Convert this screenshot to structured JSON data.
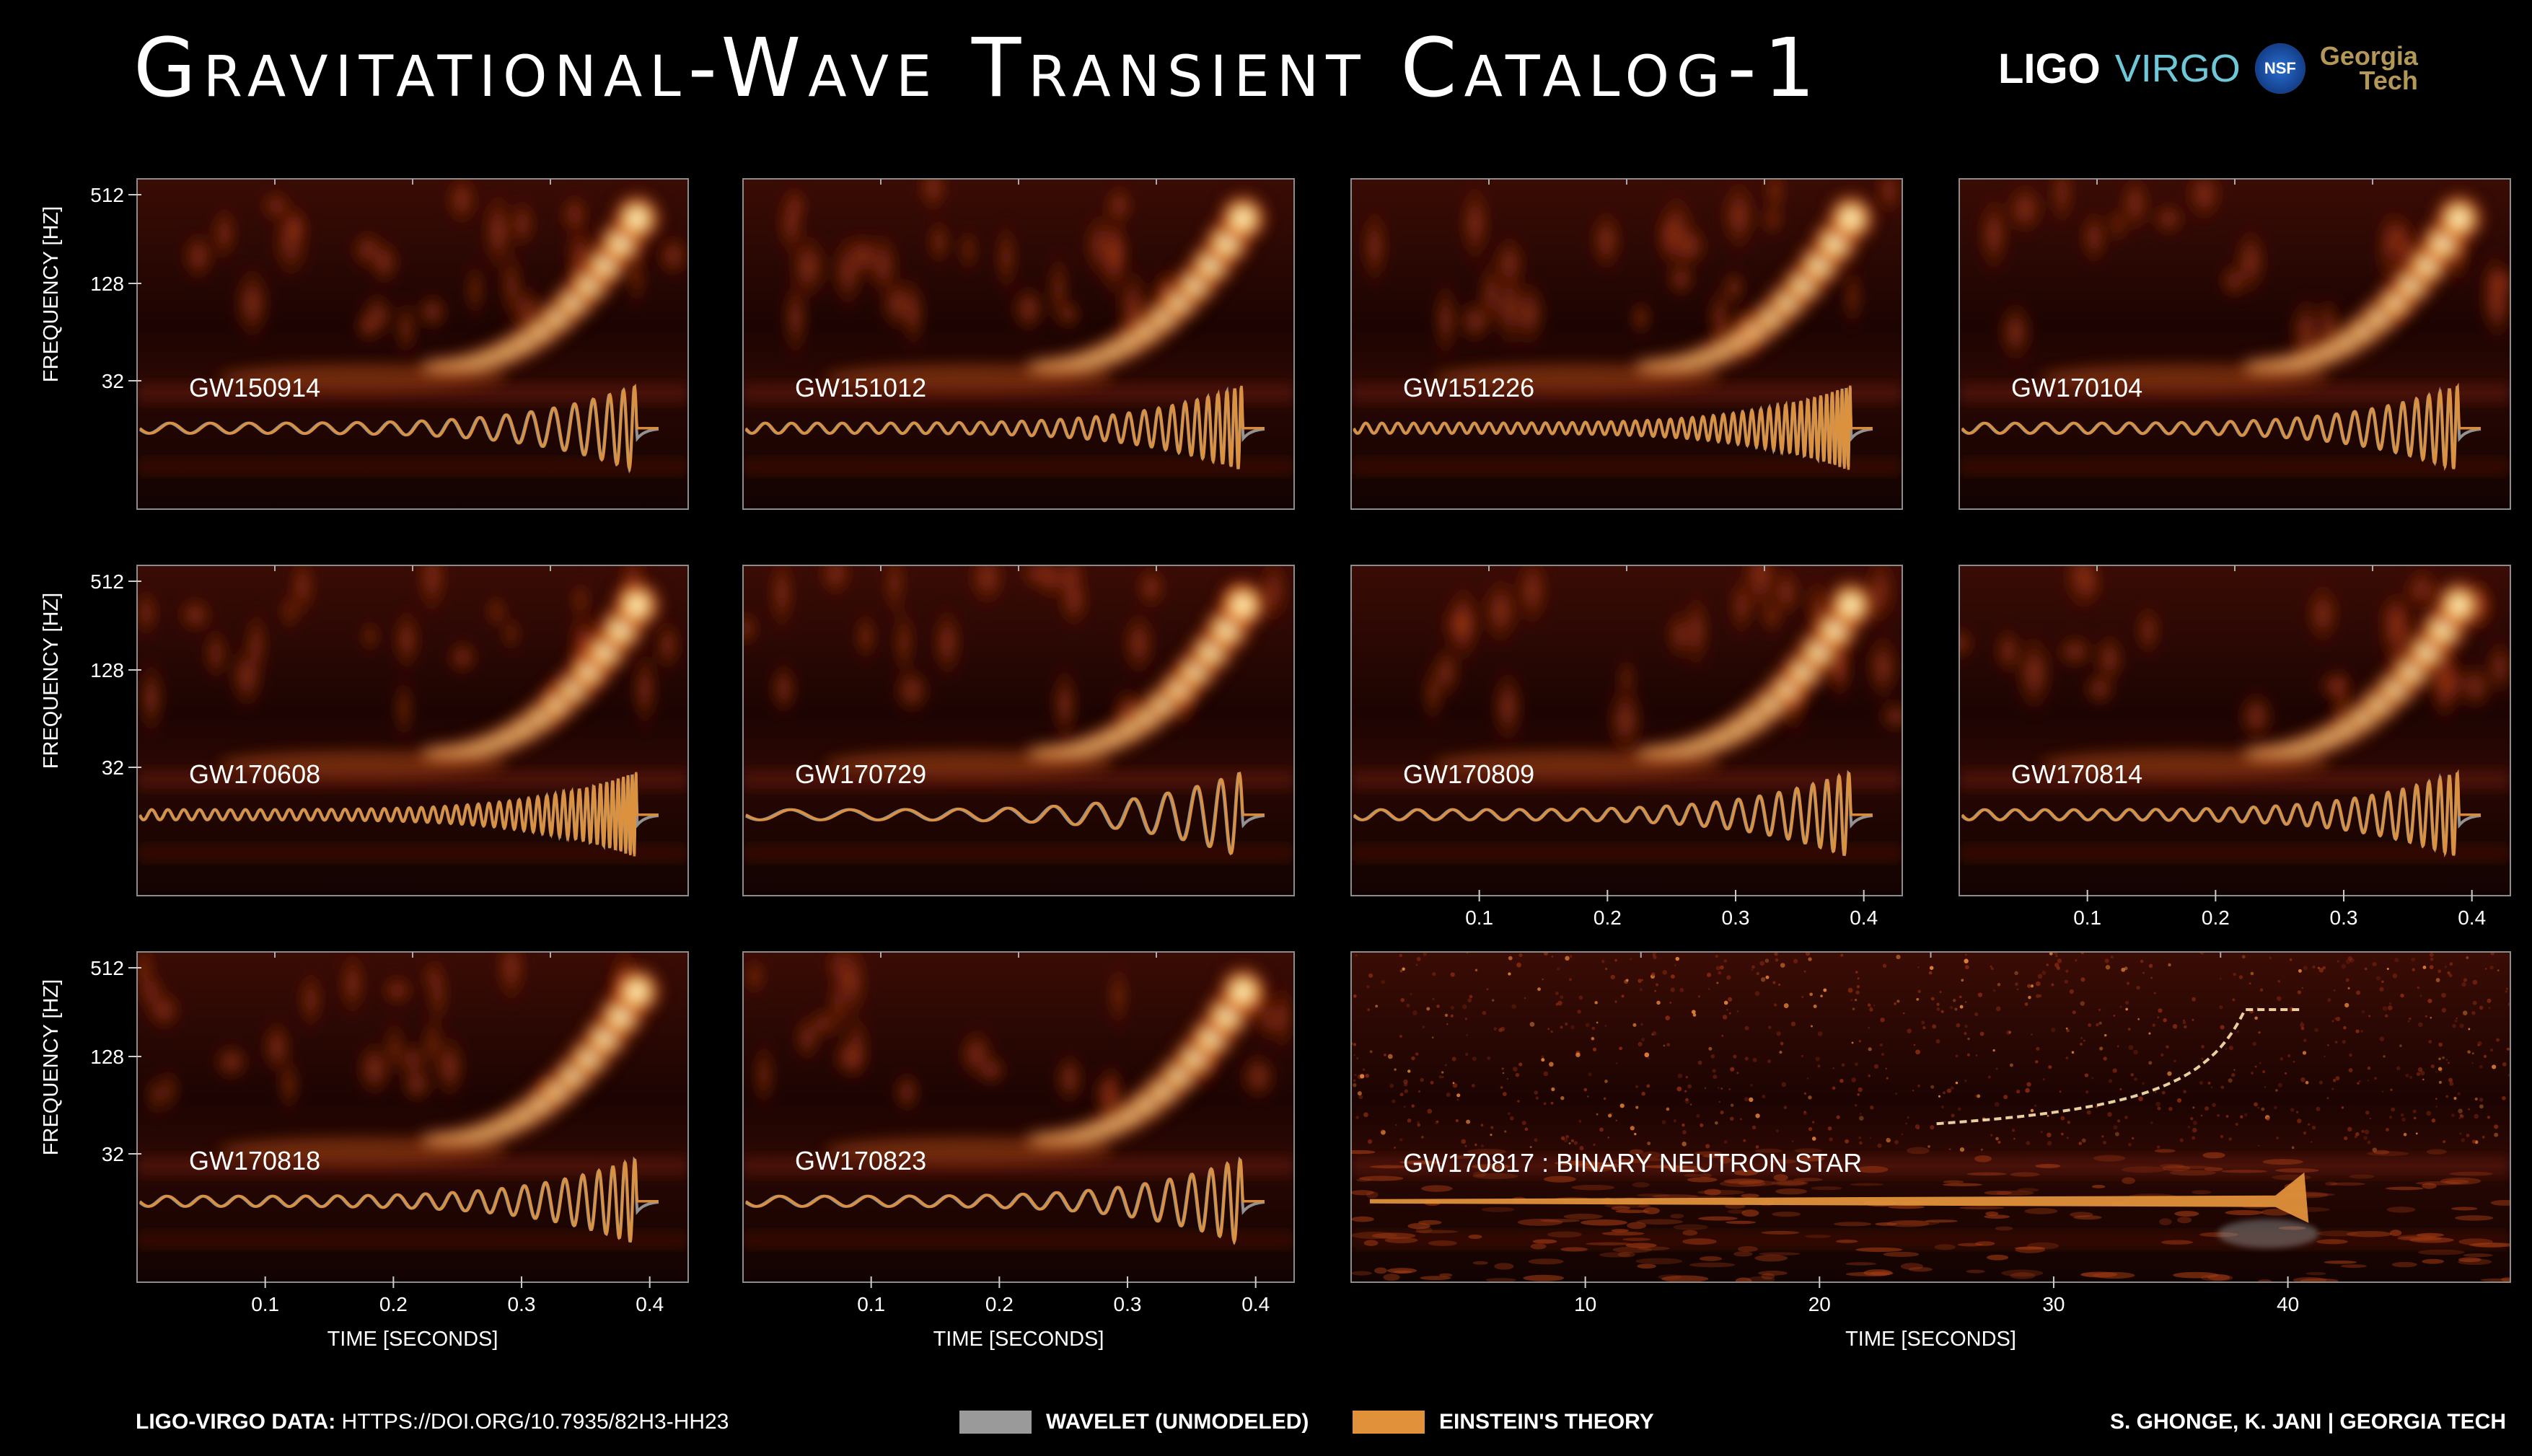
{
  "page": {
    "title": "Gravitational-Wave Transient Catalog-1",
    "logos": {
      "ligo": "LIGO",
      "virgo": "VIRGO",
      "nsf": "NSF",
      "georgia_tech_1": "Georgia",
      "georgia_tech_2": "Tech"
    }
  },
  "footer": {
    "data_label": "LIGO-VIRGO DATA:",
    "doi": "HTTPS://DOI.ORG/10.7935/82H3-HH23",
    "legend_wavelet": "WAVELET (UNMODELED)",
    "legend_einstein": "EINSTEIN'S THEORY",
    "credit": "S. GHONGE, K. JANI | GEORGIA TECH"
  },
  "colors": {
    "background": "#000000",
    "wavelet": "#9a9a9a",
    "einstein": "#e0913a",
    "spectrogram_hot": "#fff2c0",
    "spectrogram_warm": "#d7581a",
    "spectrogram_cool": "#3a0a04"
  },
  "chart_data": [
    {
      "type": "heatmap",
      "event": "GW150914",
      "ylabel": "FREQUENCY  [HZ]",
      "yticks": [
        "512",
        "128",
        "32"
      ],
      "xticks": [],
      "xlabel": "",
      "xlim": [
        0,
        0.43
      ],
      "chirp_end": 0.39,
      "inspiral_cycles": 12
    },
    {
      "type": "heatmap",
      "event": "GW151012",
      "ylabel": "",
      "yticks": [],
      "xticks": [],
      "xlabel": "",
      "xlim": [
        0,
        0.43
      ],
      "chirp_end": 0.39,
      "inspiral_cycles": 22
    },
    {
      "type": "heatmap",
      "event": "GW151226",
      "ylabel": "",
      "yticks": [],
      "xticks": [],
      "xlabel": "",
      "xlim": [
        0,
        0.43
      ],
      "chirp_end": 0.39,
      "inspiral_cycles": 40
    },
    {
      "type": "heatmap",
      "event": "GW170104",
      "ylabel": "",
      "yticks": [],
      "xticks": [],
      "xlabel": "",
      "xlim": [
        0,
        0.43
      ],
      "chirp_end": 0.39,
      "inspiral_cycles": 18
    },
    {
      "type": "heatmap",
      "event": "GW170608",
      "ylabel": "FREQUENCY  [HZ]",
      "yticks": [
        "512",
        "128",
        "32"
      ],
      "xticks": [],
      "xlabel": "",
      "xlim": [
        0,
        0.43
      ],
      "chirp_end": 0.39,
      "inspiral_cycles": 40
    },
    {
      "type": "heatmap",
      "event": "GW170729",
      "ylabel": "",
      "yticks": [],
      "xticks": [],
      "xlabel": "",
      "xlim": [
        0,
        0.43
      ],
      "chirp_end": 0.39,
      "inspiral_cycles": 6
    },
    {
      "type": "heatmap",
      "event": "GW170809",
      "ylabel": "",
      "yticks": [],
      "xticks": [
        "0.1",
        "0.2",
        "0.3",
        "0.4"
      ],
      "xlabel": "",
      "xlim": [
        0,
        0.43
      ],
      "chirp_end": 0.39,
      "inspiral_cycles": 14
    },
    {
      "type": "heatmap",
      "event": "GW170814",
      "ylabel": "",
      "yticks": [],
      "xticks": [
        "0.1",
        "0.2",
        "0.3",
        "0.4"
      ],
      "xlabel": "",
      "xlim": [
        0,
        0.43
      ],
      "chirp_end": 0.39,
      "inspiral_cycles": 18
    },
    {
      "type": "heatmap",
      "event": "GW170818",
      "ylabel": "FREQUENCY  [HZ]",
      "yticks": [
        "512",
        "128",
        "32"
      ],
      "xticks": [
        "0.1",
        "0.2",
        "0.3",
        "0.4"
      ],
      "xlabel": "TIME  [SECONDS]",
      "xlim": [
        0,
        0.43
      ],
      "chirp_end": 0.39,
      "inspiral_cycles": 14
    },
    {
      "type": "heatmap",
      "event": "GW170823",
      "ylabel": "",
      "yticks": [],
      "xticks": [
        "0.1",
        "0.2",
        "0.3",
        "0.4"
      ],
      "xlabel": "TIME  [SECONDS]",
      "xlim": [
        0,
        0.43
      ],
      "chirp_end": 0.39,
      "inspiral_cycles": 10
    },
    {
      "type": "heatmap",
      "event": "GW170817 : BINARY NEUTRON STAR",
      "ylabel": "",
      "yticks": [],
      "xticks": [
        "10",
        "20",
        "30",
        "40"
      ],
      "xlabel": "TIME  [SECONDS]",
      "xlim": [
        0,
        49.5
      ],
      "chirp_end": 40.7,
      "inspiral_cycles": 0
    }
  ]
}
